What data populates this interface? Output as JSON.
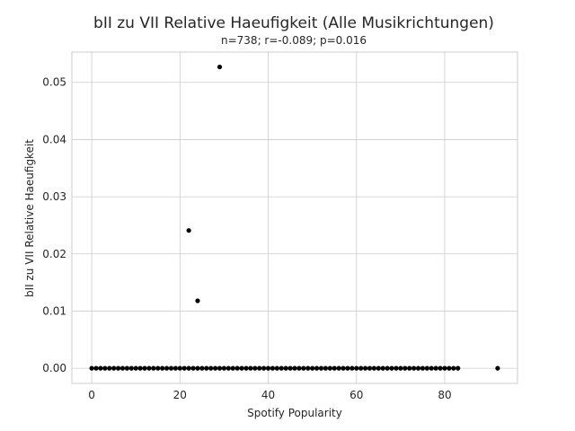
{
  "chart_data": {
    "type": "scatter",
    "title": "bII zu VII Relative Haeufigkeit (Alle Musikrichtungen)",
    "subtitle": "n=738; r=-0.089; p=0.016",
    "xlabel": "Spotify Popularity",
    "ylabel": "bII zu VII Relative Haeufigkeit",
    "xlim": [
      -4.5,
      96.5
    ],
    "ylim": [
      -0.00265,
      0.0553
    ],
    "xticks": [
      0,
      20,
      40,
      60,
      80
    ],
    "yticks": [
      0.0,
      0.01,
      0.02,
      0.03,
      0.04,
      0.05
    ],
    "ytick_labels": [
      "0.00",
      "0.01",
      "0.02",
      "0.03",
      "0.04",
      "0.05"
    ],
    "grid": true,
    "marker_color": "#000000",
    "points": {
      "zero_baseline_x_range": [
        0,
        83
      ],
      "zero_baseline_extra_x": [
        92
      ],
      "nonzero": [
        {
          "x": 29,
          "y": 0.0527
        },
        {
          "x": 22,
          "y": 0.0241
        },
        {
          "x": 24,
          "y": 0.0118
        }
      ]
    }
  }
}
